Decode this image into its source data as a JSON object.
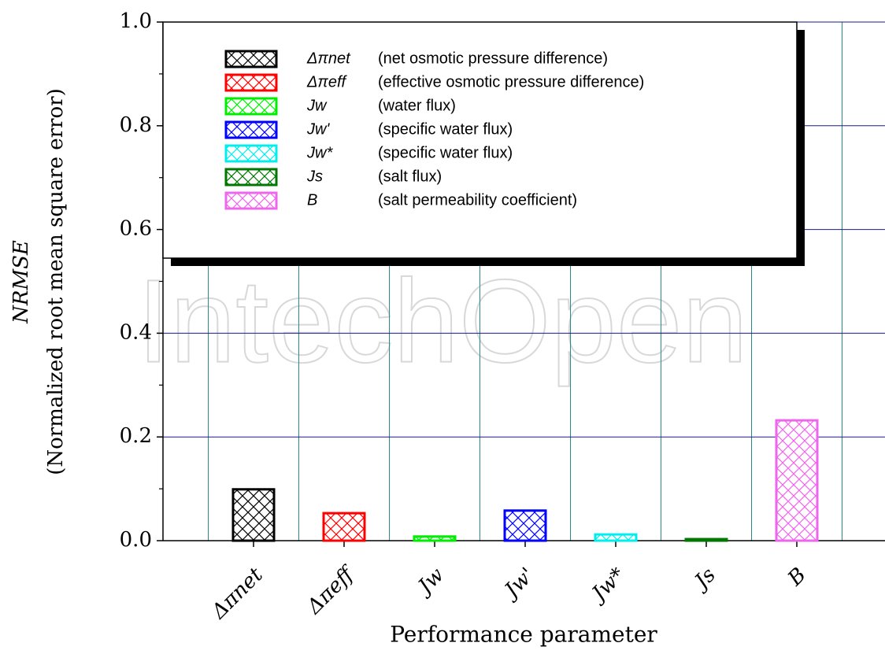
{
  "chart_data": {
    "type": "bar",
    "title_y": "NRMSE",
    "ylabel": "(Normalized root mean square error)",
    "xlabel": "Performance parameter",
    "watermark": "IntechOpen",
    "categories": [
      "Δπnet",
      "Δπeff",
      "Jw",
      "Jw'",
      "Jw*",
      "Js",
      "B"
    ],
    "values": [
      0.099,
      0.053,
      0.008,
      0.058,
      0.012,
      0.003,
      0.232
    ],
    "colors": [
      "#000000",
      "#ff0000",
      "#00ee00",
      "#0000ff",
      "#00eeee",
      "#007700",
      "#ee66ee"
    ],
    "legend_labels": [
      "(net osmotic pressure difference)",
      "(effective osmotic pressure difference)",
      "(water flux)",
      "(specific water flux)",
      "(specific water flux)",
      "(salt flux)",
      "(salt permeability coefficient)"
    ],
    "ylim": [
      0,
      1
    ],
    "yticks": [
      {
        "value": 0,
        "label": "0.0"
      },
      0.2,
      0.4,
      0.6,
      0.8,
      {
        "value": 1,
        "label": "1.0"
      }
    ],
    "grid": true
  }
}
